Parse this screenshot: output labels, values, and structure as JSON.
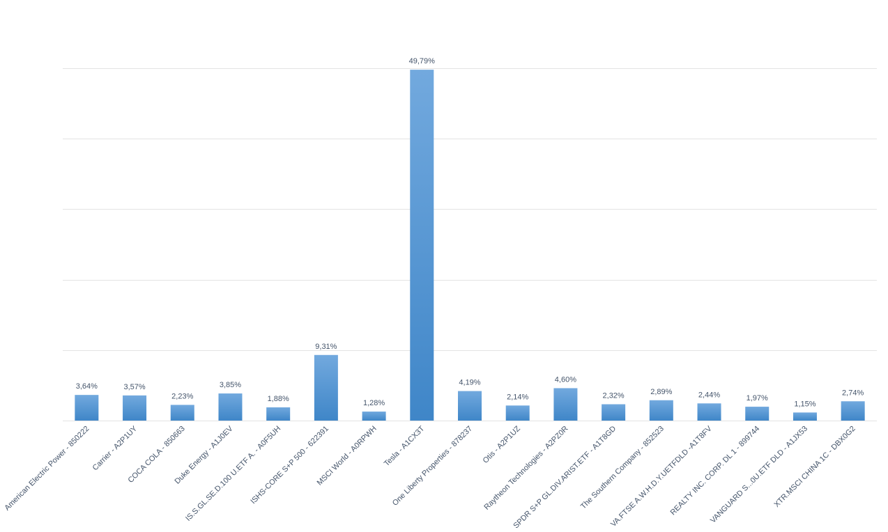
{
  "chart_data": {
    "type": "bar",
    "title": "",
    "xlabel": "",
    "ylabel": "",
    "ylim": [
      0,
      50
    ],
    "grid": true,
    "y_gridlines": [
      0,
      10,
      20,
      30,
      40,
      50
    ],
    "y_tick_labels_visible": false,
    "legend": "none",
    "bar_color_top": "#72a9de",
    "bar_color_bottom": "#3f86c8",
    "categories": [
      "American Electric Power - 850222",
      "Carrier - A2P1UY",
      "COCA COLA - 850663",
      "Duke Energy - A1J0EV",
      "IS.S.GL.SE.D.100 U.ETF A. - A0F5UH",
      "ISHS-CORE S+P 500 - 622391",
      "MSCI World - A0RPWH",
      "Tesla - A1CX3T",
      "One Liberty Properties - 878237",
      "Otis - A2P1UZ",
      "Raytheon Technologies - A2PZ0R",
      "SPDR S+P GL.DIV.ARIST.ETF - A1T8GD",
      "The Southern Company - 852523",
      "VA.FTSE A.W.H.D.Y.UETFDLD -A1T8FV",
      "REALTY INC. CORP. DL 1 - 899744",
      "VANGUARD S...0U.ETF DLD - A1JX53",
      "XTR.MSCI CHINA 1C - DBX0G2"
    ],
    "values": [
      3.64,
      3.57,
      2.23,
      3.85,
      1.88,
      9.31,
      1.28,
      49.79,
      4.19,
      2.14,
      4.6,
      2.32,
      2.89,
      2.44,
      1.97,
      1.15,
      2.74
    ],
    "data_labels": [
      "3,64%",
      "3,57%",
      "2,23%",
      "3,85%",
      "1,88%",
      "9,31%",
      "1,28%",
      "49,79%",
      "4,19%",
      "2,14%",
      "4,60%",
      "2,32%",
      "2,89%",
      "2,44%",
      "1,97%",
      "1,15%",
      "2,74%"
    ]
  }
}
